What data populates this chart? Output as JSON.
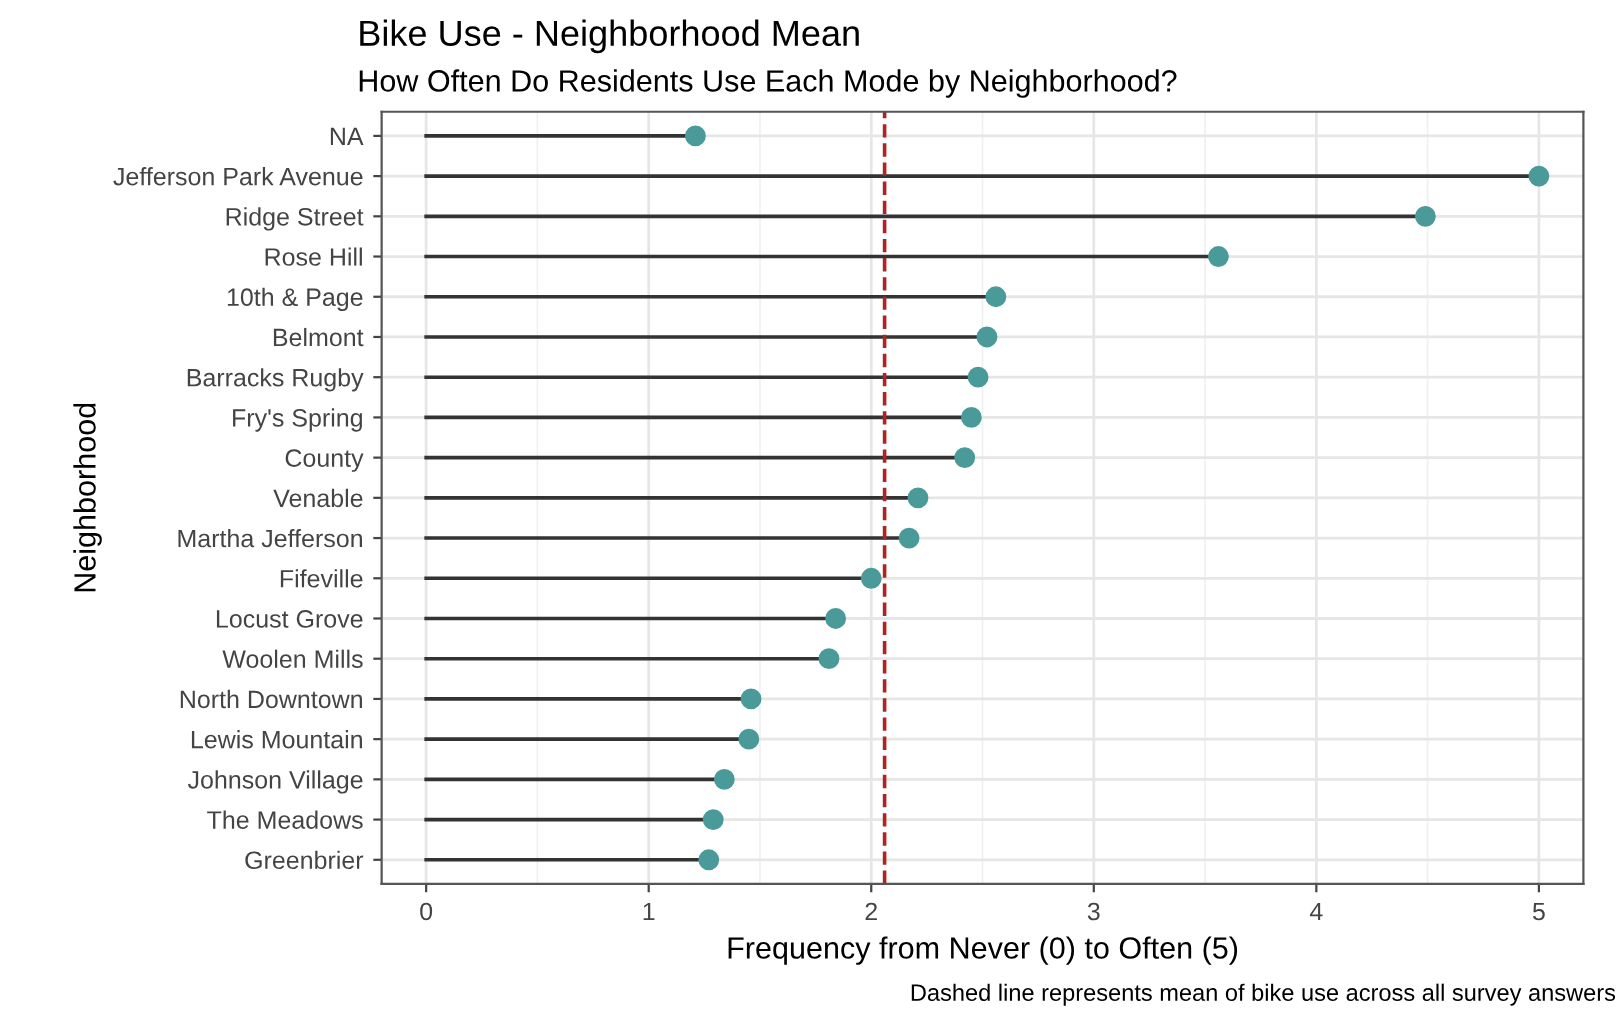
{
  "chart_data": {
    "type": "lollipop",
    "orientation": "horizontal",
    "title": "Bike Use - Neighborhood Mean",
    "subtitle": "How Often Do Residents Use Each Mode by Neighborhood?",
    "xlabel": "Frequency from Never (0) to Often (5)",
    "ylabel": "Neighborhood",
    "categories": [
      "NA",
      "Jefferson Park Avenue",
      "Ridge Street",
      "Rose Hill",
      "10th & Page",
      "Belmont",
      "Barracks Rugby",
      "Fry's Spring",
      "County",
      "Venable",
      "Martha Jefferson",
      "Fifeville",
      "Locust Grove",
      "Woolen Mills",
      "North Downtown",
      "Lewis Mountain",
      "Johnson Village",
      "The Meadows",
      "Greenbrier"
    ],
    "series": [
      {
        "color": "#4a9a9a",
        "values": [
          1.21,
          5.0,
          4.49,
          3.56,
          2.56,
          2.52,
          2.48,
          2.45,
          2.42,
          2.21,
          2.17,
          2.0,
          1.84,
          1.81,
          1.46,
          1.45,
          1.34,
          1.29,
          1.27
        ]
      }
    ],
    "xlim": [
      -0.2,
      5.2
    ],
    "xticks": [
      0,
      1,
      2,
      3,
      4,
      5
    ],
    "ref_lines": [
      {
        "axis": "x",
        "value": 2.06,
        "color": "#b22222",
        "line_style": "dashed"
      }
    ],
    "annotations": [
      "Dashed line represents mean of bike use across all survey answers"
    ],
    "grid": true,
    "marker": "circle"
  }
}
